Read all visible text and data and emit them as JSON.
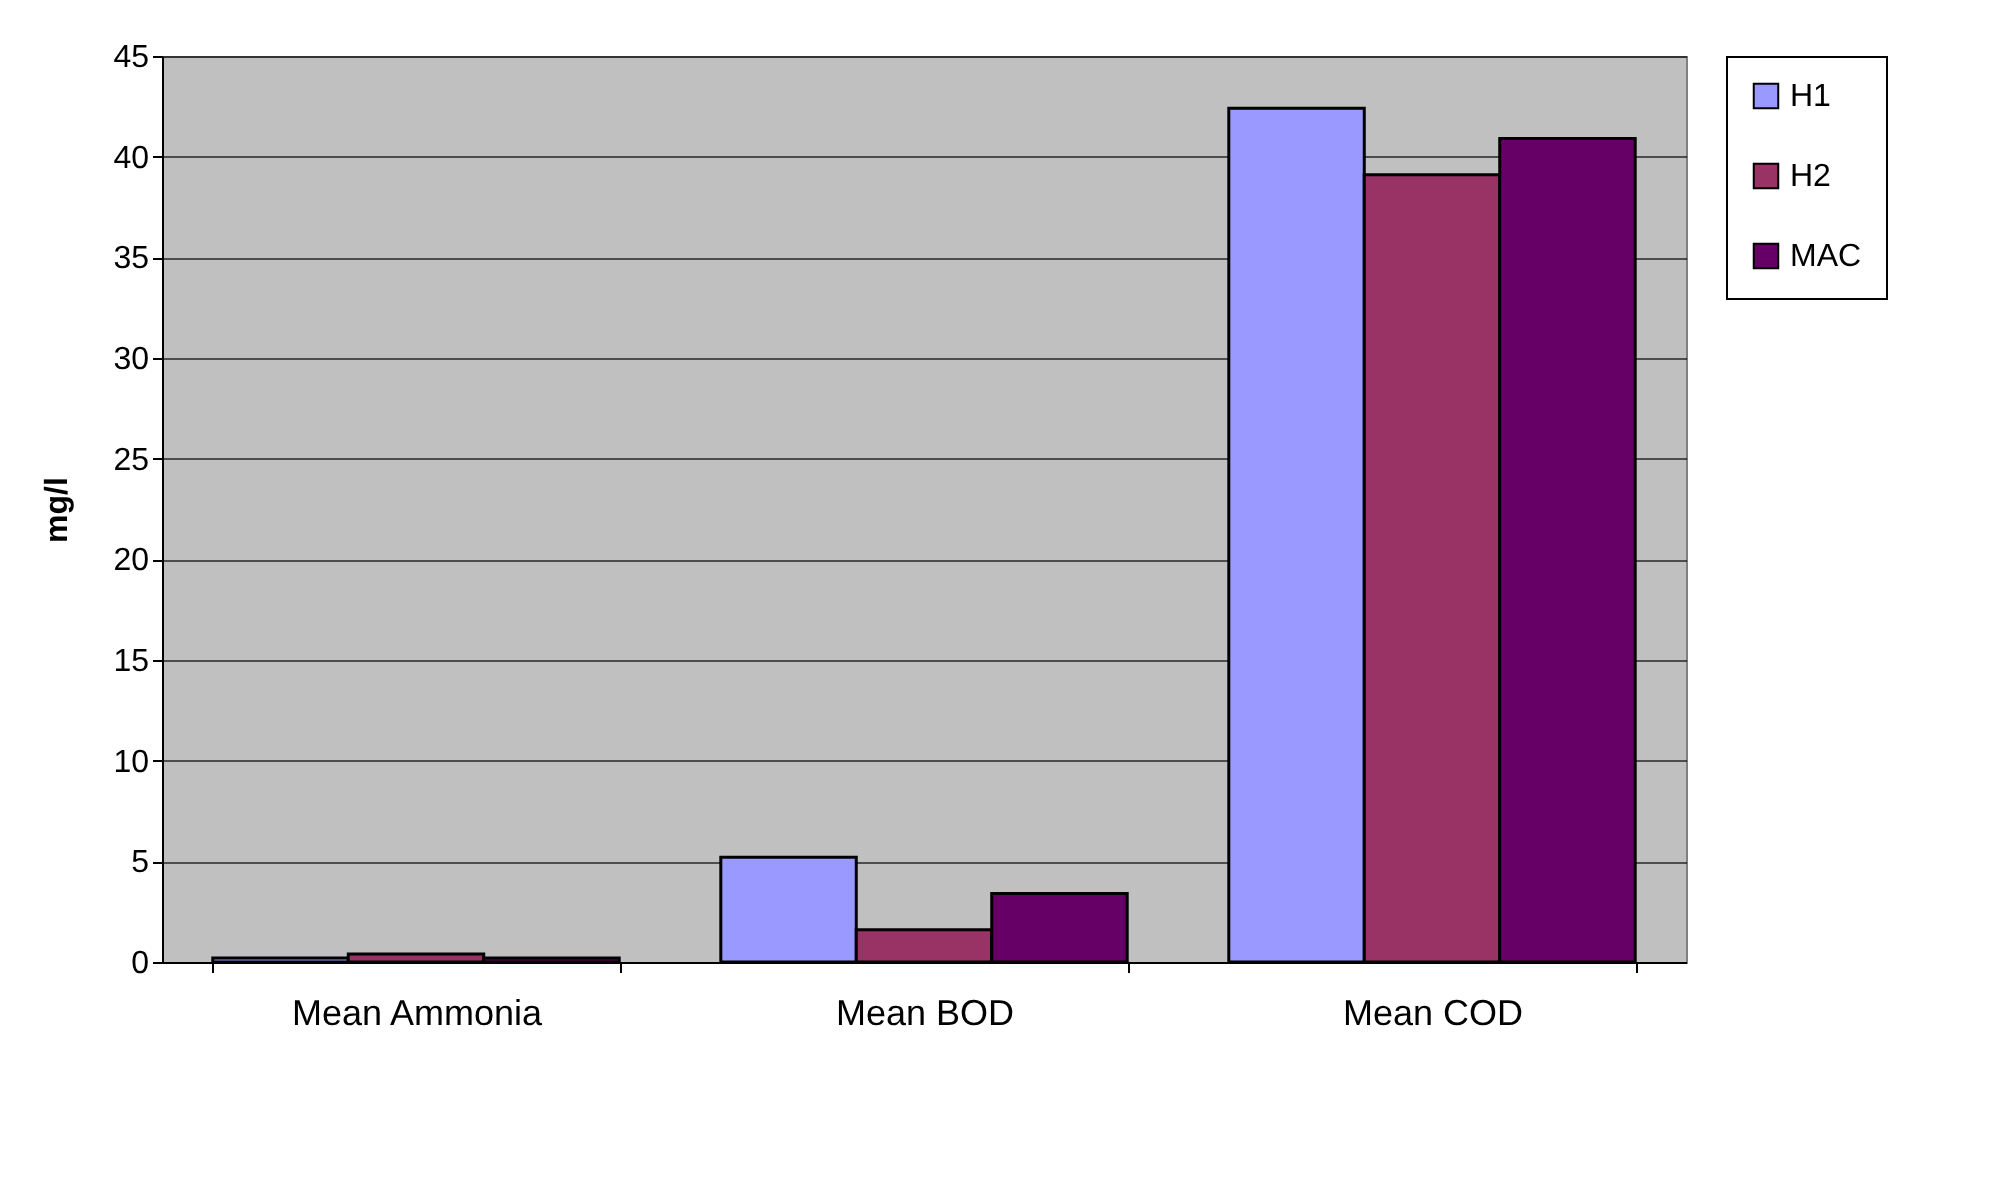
{
  "chart_data": {
    "type": "bar",
    "ylabel": "mg/l",
    "categories": [
      "Mean Ammonia",
      "Mean BOD",
      "Mean COD"
    ],
    "series": [
      {
        "name": "H1",
        "color": "#9999ff",
        "values": [
          0.2,
          5.2,
          42.4
        ]
      },
      {
        "name": "H2",
        "color": "#993366",
        "values": [
          0.4,
          1.6,
          39.1
        ]
      },
      {
        "name": "MAC",
        "color": "#660066",
        "values": [
          0.2,
          3.4,
          40.9
        ]
      }
    ],
    "ylim": [
      0,
      45
    ],
    "yticks": [
      0,
      5,
      10,
      15,
      20,
      25,
      30,
      35,
      40,
      45
    ],
    "grid": "y",
    "legend": "right"
  }
}
